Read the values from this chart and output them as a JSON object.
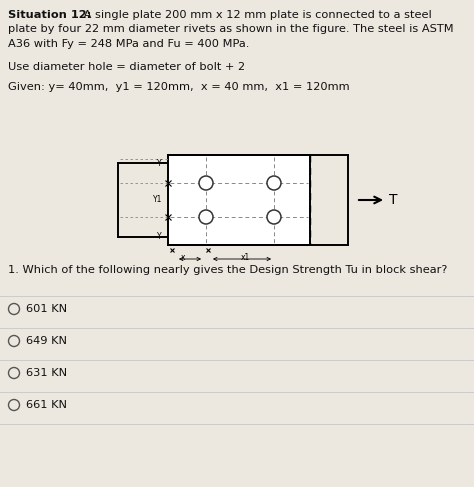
{
  "title_bold": "Situation 12:",
  "title_rest_line1": " A single plate 200 mm x 12 mm plate is connected to a steel",
  "title_line2": "plate by four 22 mm diameter rivets as shown in the figure. The steel is ASTM",
  "title_line3": "A36 with Fy = 248 MPa and Fu = 400 MPa.",
  "line2": "Use diameter hole = diameter of bolt + 2",
  "line3": "Given: y= 40mm,  y1 = 120mm,  x = 40 mm,  x1 = 120mm",
  "question": "1. Which of the following nearly gives the Design Strength Tu in block shear?",
  "options": [
    "601 KN",
    "649 KN",
    "631 KN",
    "661 KN"
  ],
  "bg_color": "#ede8df",
  "text_color": "#111111",
  "fig_width": 4.74,
  "fig_height": 4.87,
  "dpi": 100
}
